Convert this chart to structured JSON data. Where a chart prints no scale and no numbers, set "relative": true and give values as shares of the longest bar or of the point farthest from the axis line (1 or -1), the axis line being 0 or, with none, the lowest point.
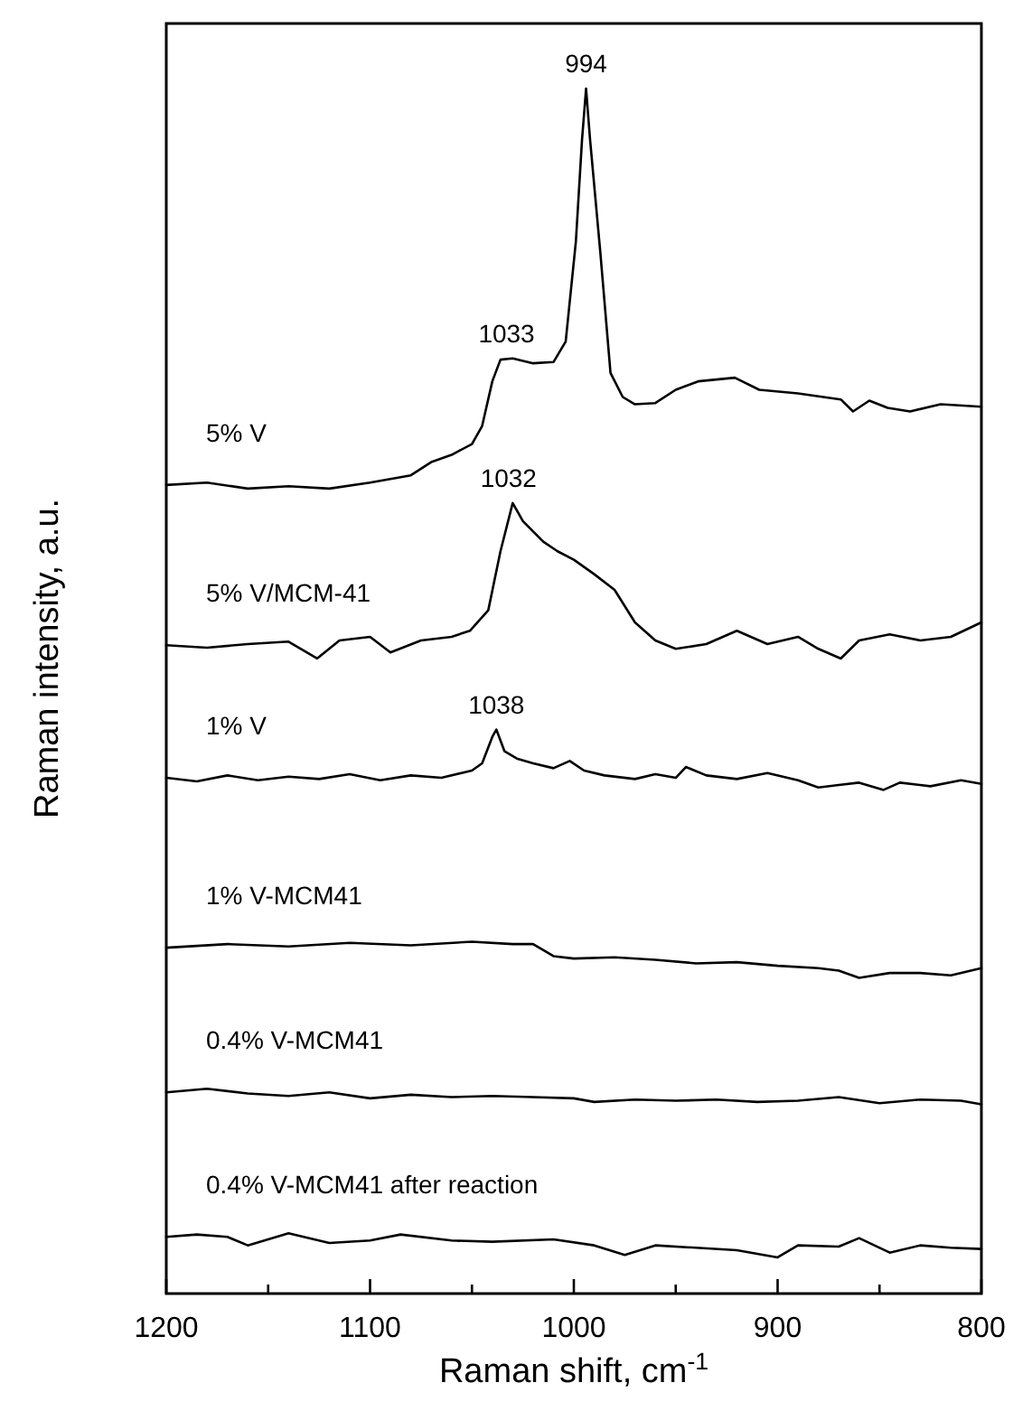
{
  "chart_data": {
    "type": "line",
    "relative": true,
    "xlabel": "Raman shift, cm$^{-1}$",
    "ylabel": "Raman intensity, a.u.",
    "xlim": [
      1200,
      800
    ],
    "xticks": [
      1200,
      {
        "value": 1150,
        "label": null
      },
      1100,
      {
        "value": 1050,
        "label": null
      },
      1000,
      {
        "value": 950,
        "label": null
      },
      900,
      {
        "value": 850,
        "label": null
      },
      800
    ],
    "grid": false,
    "line_style": "solid",
    "marker": "none",
    "annotations": [
      {
        "text": "994",
        "x": 994,
        "y": 1
      },
      {
        "text": "1033",
        "x": 1033,
        "y": 0.776
      },
      {
        "text": "1032",
        "x": 1032,
        "y": 0.656
      },
      {
        "text": "1038",
        "x": 1038,
        "y": 0.468
      }
    ],
    "series": [
      {
        "name": "5% V",
        "color": "#000000",
        "x": [
          1200,
          1180,
          1160,
          1140,
          1120,
          1100,
          1080,
          1070,
          1060,
          1050,
          1045,
          1040,
          1036,
          1030,
          1020,
          1010,
          1004,
          999,
          996,
          994,
          992,
          987,
          982,
          976,
          970,
          960,
          950,
          939,
          921,
          909,
          890,
          869,
          863,
          855,
          846,
          835,
          820,
          800
        ],
        "values": [
          0.671,
          0.673,
          0.668,
          0.67,
          0.668,
          0.673,
          0.679,
          0.69,
          0.696,
          0.705,
          0.72,
          0.757,
          0.775,
          0.776,
          0.772,
          0.773,
          0.79,
          0.873,
          0.957,
          1,
          0.957,
          0.864,
          0.764,
          0.744,
          0.738,
          0.739,
          0.75,
          0.757,
          0.76,
          0.75,
          0.747,
          0.742,
          0.732,
          0.741,
          0.735,
          0.732,
          0.738,
          0.736
        ]
      },
      {
        "name": "5% V/MCM-41",
        "color": "#000000",
        "x": [
          1200,
          1180,
          1160,
          1140,
          1126,
          1115,
          1100,
          1090,
          1075,
          1060,
          1051,
          1042,
          1036,
          1030,
          1025,
          1015,
          1008,
          1000,
          990,
          980,
          970,
          960,
          950,
          935,
          920,
          905,
          890,
          880,
          869,
          860,
          845,
          830,
          815,
          800
        ],
        "values": [
          0.538,
          0.536,
          0.539,
          0.541,
          0.527,
          0.542,
          0.545,
          0.532,
          0.542,
          0.545,
          0.55,
          0.567,
          0.616,
          0.656,
          0.641,
          0.624,
          0.616,
          0.609,
          0.597,
          0.584,
          0.557,
          0.542,
          0.535,
          0.539,
          0.55,
          0.539,
          0.545,
          0.535,
          0.527,
          0.542,
          0.547,
          0.542,
          0.545,
          0.557
        ]
      },
      {
        "name": "1% V",
        "color": "#000000",
        "x": [
          1200,
          1185,
          1170,
          1155,
          1140,
          1125,
          1110,
          1095,
          1080,
          1065,
          1050,
          1045,
          1040,
          1038,
          1034,
          1028,
          1020,
          1010,
          1002,
          995,
          985,
          970,
          960,
          950,
          945,
          935,
          920,
          905,
          890,
          880,
          870,
          860,
          848,
          840,
          825,
          810,
          800
        ],
        "values": [
          0.428,
          0.425,
          0.43,
          0.426,
          0.429,
          0.427,
          0.431,
          0.426,
          0.43,
          0.428,
          0.434,
          0.44,
          0.462,
          0.468,
          0.45,
          0.444,
          0.44,
          0.436,
          0.442,
          0.434,
          0.43,
          0.427,
          0.431,
          0.428,
          0.437,
          0.43,
          0.427,
          0.432,
          0.426,
          0.42,
          0.422,
          0.424,
          0.418,
          0.424,
          0.421,
          0.426,
          0.423
        ]
      },
      {
        "name": "1% V-MCM41",
        "color": "#000000",
        "x": [
          1200,
          1170,
          1140,
          1110,
          1080,
          1050,
          1030,
          1020,
          1010,
          1000,
          980,
          960,
          940,
          920,
          900,
          880,
          870,
          860,
          845,
          830,
          815,
          800
        ],
        "values": [
          0.287,
          0.29,
          0.288,
          0.291,
          0.289,
          0.292,
          0.29,
          0.29,
          0.28,
          0.278,
          0.279,
          0.277,
          0.274,
          0.275,
          0.272,
          0.27,
          0.268,
          0.262,
          0.266,
          0.266,
          0.264,
          0.27
        ]
      },
      {
        "name": "0.4% V-MCM41",
        "color": "#000000",
        "x": [
          1200,
          1180,
          1160,
          1140,
          1120,
          1100,
          1080,
          1060,
          1040,
          1020,
          1000,
          990,
          970,
          950,
          930,
          910,
          890,
          870,
          850,
          830,
          810,
          800
        ],
        "values": [
          0.167,
          0.17,
          0.166,
          0.164,
          0.167,
          0.162,
          0.165,
          0.163,
          0.164,
          0.163,
          0.162,
          0.159,
          0.161,
          0.16,
          0.161,
          0.159,
          0.16,
          0.163,
          0.158,
          0.161,
          0.16,
          0.157
        ]
      },
      {
        "name": "0.4% V-MCM41 after reaction",
        "color": "#000000",
        "x": [
          1200,
          1185,
          1170,
          1160,
          1140,
          1120,
          1100,
          1085,
          1060,
          1040,
          1010,
          990,
          975,
          960,
          940,
          920,
          900,
          890,
          870,
          860,
          845,
          830,
          815,
          800
        ],
        "values": [
          0.047,
          0.049,
          0.047,
          0.04,
          0.05,
          0.042,
          0.044,
          0.049,
          0.044,
          0.043,
          0.045,
          0.04,
          0.032,
          0.04,
          0.038,
          0.036,
          0.03,
          0.04,
          0.039,
          0.046,
          0.034,
          0.04,
          0.038,
          0.037
        ]
      }
    ]
  }
}
